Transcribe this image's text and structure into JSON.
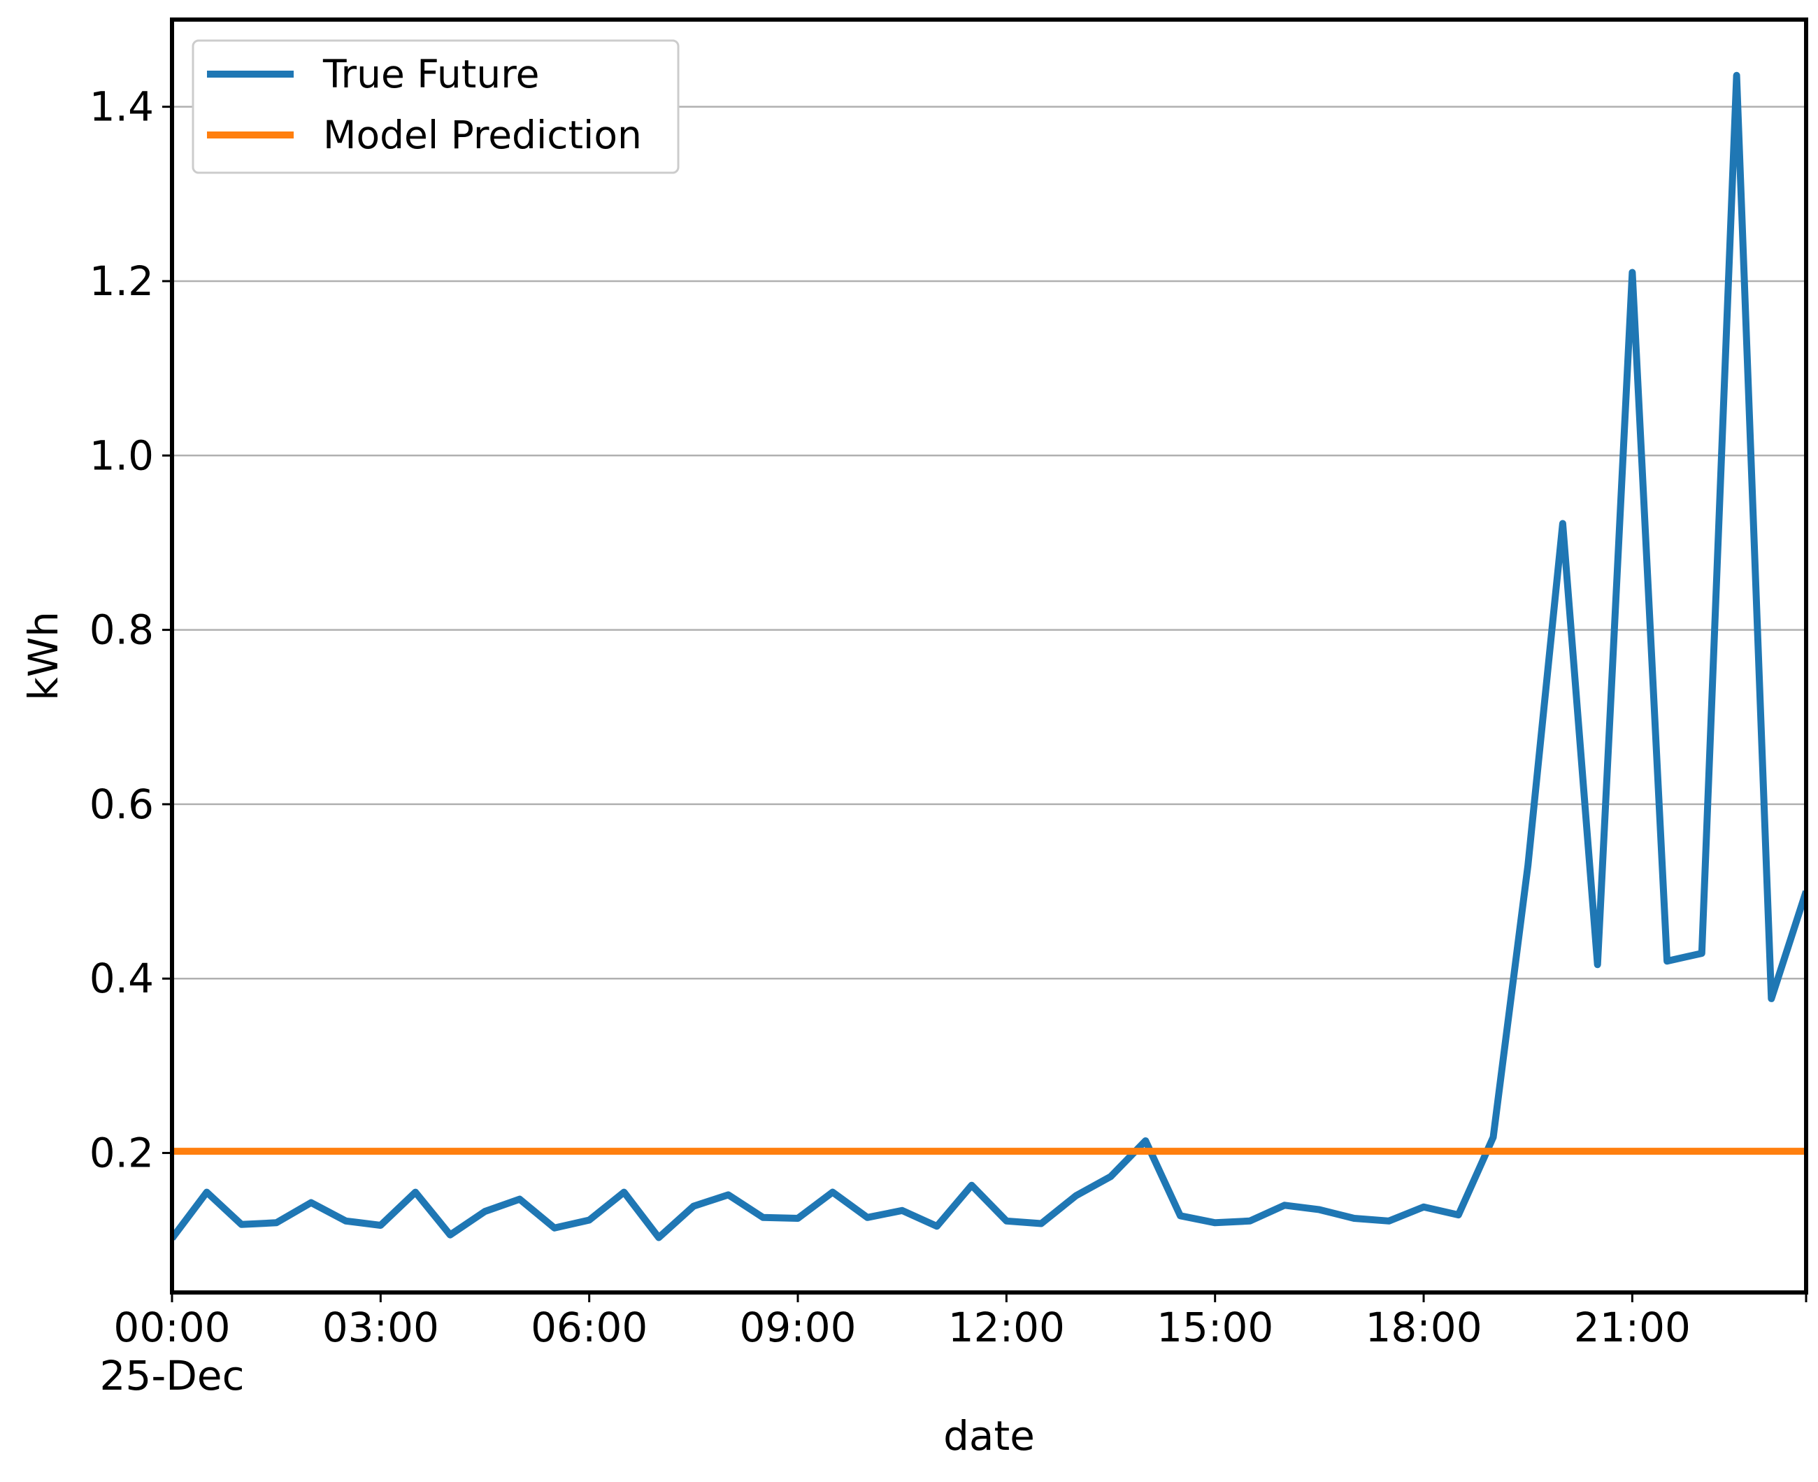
{
  "chart_data": {
    "type": "line",
    "xlabel": "date",
    "ylabel": "kWh",
    "x_unit": "hours",
    "xlim": [
      0,
      23.5
    ],
    "ylim": [
      0.04,
      1.5
    ],
    "x_ticks": [
      {
        "value": 0,
        "label": "00:00",
        "sublabel": "25-Dec"
      },
      {
        "value": 3,
        "label": "03:00"
      },
      {
        "value": 6,
        "label": "06:00"
      },
      {
        "value": 9,
        "label": "09:00"
      },
      {
        "value": 12,
        "label": "12:00"
      },
      {
        "value": 15,
        "label": "15:00"
      },
      {
        "value": 18,
        "label": "18:00"
      },
      {
        "value": 21,
        "label": "21:00"
      },
      {
        "value": 23.5,
        "label": ""
      }
    ],
    "y_ticks": [
      {
        "value": 0.2,
        "label": "0.2"
      },
      {
        "value": 0.4,
        "label": "0.4"
      },
      {
        "value": 0.6,
        "label": "0.6"
      },
      {
        "value": 0.8,
        "label": "0.8"
      },
      {
        "value": 1.0,
        "label": "1.0"
      },
      {
        "value": 1.2,
        "label": "1.2"
      },
      {
        "value": 1.4,
        "label": "1.4"
      }
    ],
    "grid": {
      "y": true,
      "x": false
    },
    "legend_position": "top-left",
    "series": [
      {
        "name": "True Future",
        "color": "#1f77b4",
        "x": [
          0,
          0.5,
          1,
          1.5,
          2,
          2.5,
          3,
          3.5,
          4,
          4.5,
          5,
          5.5,
          6,
          6.5,
          7,
          7.5,
          8,
          8.5,
          9,
          9.5,
          10,
          10.5,
          11,
          11.5,
          12,
          12.5,
          13,
          13.5,
          14,
          14.5,
          15,
          15.5,
          16,
          16.5,
          17,
          17.5,
          18,
          18.5,
          19,
          19.5,
          20,
          20.5,
          21,
          21.5,
          22,
          22.5,
          23,
          23.5
        ],
        "values": [
          0.102,
          0.155,
          0.118,
          0.12,
          0.143,
          0.122,
          0.117,
          0.155,
          0.106,
          0.133,
          0.147,
          0.114,
          0.123,
          0.155,
          0.103,
          0.139,
          0.152,
          0.126,
          0.125,
          0.155,
          0.126,
          0.134,
          0.116,
          0.163,
          0.122,
          0.119,
          0.151,
          0.173,
          0.214,
          0.128,
          0.12,
          0.122,
          0.14,
          0.135,
          0.125,
          0.122,
          0.138,
          0.129,
          0.218,
          0.53,
          0.922,
          0.416,
          1.21,
          0.42,
          0.429,
          1.436,
          0.377,
          0.5
        ]
      },
      {
        "name": "Model Prediction",
        "color": "#ff7f0e",
        "x": [
          0,
          23.5
        ],
        "values": [
          0.202,
          0.202
        ]
      }
    ]
  }
}
